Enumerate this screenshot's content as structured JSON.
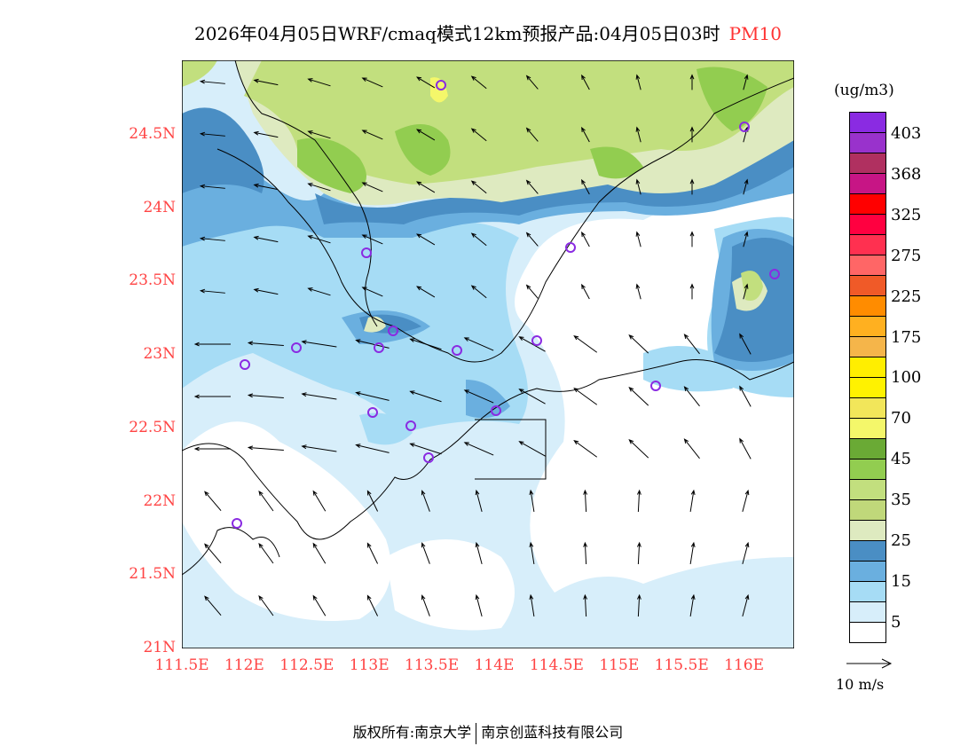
{
  "title": {
    "main": "2026年04月05日WRF/cmaq模式12km预报产品:04月05日03时",
    "pollutant": "PM10"
  },
  "axes": {
    "lat_labels": [
      "24.5N",
      "24N",
      "23.5N",
      "23N",
      "22.5N",
      "22N",
      "21.5N",
      "21N"
    ],
    "lon_labels": [
      "111.5E",
      "112E",
      "112.5E",
      "113E",
      "113.5E",
      "114E",
      "114.5E",
      "115E",
      "115.5E",
      "116E"
    ]
  },
  "colorbar": {
    "unit": "(ug/m3)",
    "labels": [
      "403",
      "368",
      "325",
      "275",
      "225",
      "175",
      "100",
      "70",
      "45",
      "35",
      "25",
      "15",
      "5"
    ],
    "colors": [
      "#8a2be2",
      "#9932cc",
      "#b03060",
      "#c71585",
      "#ff0000",
      "#ff0040",
      "#ff3050",
      "#ff6666",
      "#f05a28",
      "#ff8c00",
      "#ffb020",
      "#f5b54a",
      "#ffee00",
      "#fff200",
      "#f2e65a",
      "#f4f76a",
      "#6aaa35",
      "#92cd50",
      "#c2df7e",
      "#c0d87a",
      "#deeac0",
      "#4a8ec4",
      "#6aafdf",
      "#a6dcf5",
      "#d7eefa",
      "#ffffff"
    ]
  },
  "wind_scale": {
    "label": "10 m/s"
  },
  "footer": {
    "left": "版权所有:南京大学",
    "right": "南京创蓝科技有限公司"
  }
}
